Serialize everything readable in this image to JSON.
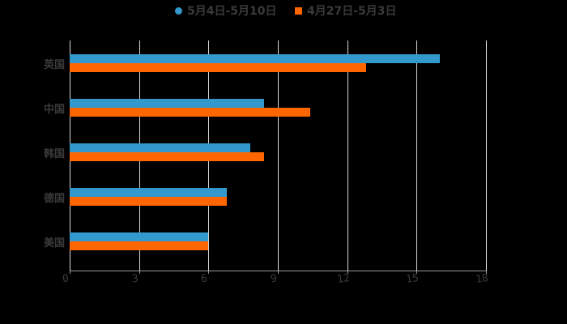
{
  "chart_data": {
    "type": "bar",
    "orientation": "horizontal",
    "title": "",
    "xlabel": "",
    "ylabel": "",
    "categories": [
      "英国",
      "中国",
      "韩国",
      "德国",
      "美国"
    ],
    "series": [
      {
        "name": "5月4日-5月10日",
        "color": "#3399cc",
        "marker": "circle",
        "values": [
          16.0,
          8.4,
          7.8,
          6.8,
          6.0
        ]
      },
      {
        "name": "4月27日-5月3日",
        "color": "#ff6600",
        "marker": "square",
        "values": [
          12.8,
          10.4,
          8.4,
          6.8,
          6.0
        ]
      }
    ],
    "xlim": [
      0,
      18
    ],
    "xticks": [
      "0",
      "3",
      "6",
      "9",
      "12",
      "15",
      "18"
    ],
    "grid": true,
    "legend_position": "top"
  },
  "legend": {
    "items": [
      {
        "label": "5月4日-5月10日",
        "color": "#3399cc"
      },
      {
        "label": "4月27日-5月3日",
        "color": "#ff6600"
      }
    ]
  }
}
